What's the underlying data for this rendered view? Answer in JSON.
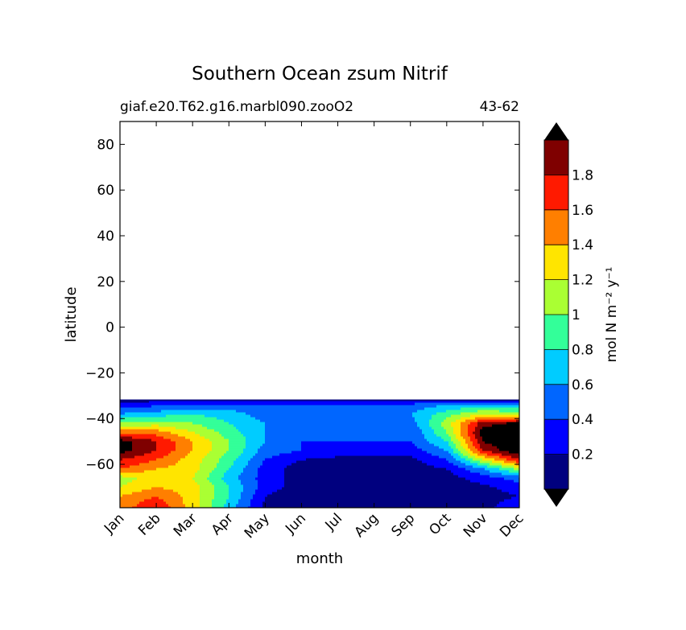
{
  "chart_data": {
    "type": "contour",
    "title": "Southern Ocean zsum Nitrif",
    "subtitle_left": "giaf.e20.T62.g16.marbl090.zooO2",
    "subtitle_right": "43-62",
    "xlabel": "month",
    "ylabel": "latitude",
    "x_categories": [
      "Jan",
      "Feb",
      "Mar",
      "Apr",
      "May",
      "Jun",
      "Jul",
      "Aug",
      "Sep",
      "Oct",
      "Nov",
      "Dec"
    ],
    "x_tick_labels": [
      "Jan",
      "Feb",
      "Mar",
      "Apr",
      "May",
      "Jun",
      "Jul",
      "Aug",
      "Sep",
      "Oct",
      "Nov",
      "Dec"
    ],
    "ylim": [
      -79,
      90
    ],
    "y_ticks": [
      80,
      60,
      40,
      20,
      0,
      -20,
      -40,
      -60
    ],
    "y_tick_labels": [
      "80",
      "60",
      "40",
      "20",
      "0",
      "−20",
      "−40",
      "−60"
    ],
    "data_lat_range": [
      -79,
      -32
    ],
    "colorbar": {
      "label": "mol N m⁻² y⁻¹",
      "levels": [
        0,
        0.2,
        0.4,
        0.6,
        0.8,
        1.0,
        1.2,
        1.4,
        1.6,
        1.8,
        2.0
      ],
      "tick_values": [
        0.2,
        0.4,
        0.6,
        0.8,
        1.0,
        1.2,
        1.4,
        1.6,
        1.8
      ],
      "tick_labels": [
        "0.2",
        "0.4",
        "0.6",
        "0.8",
        "1",
        "1.2",
        "1.4",
        "1.6",
        "1.8"
      ],
      "colors": [
        "#00007f",
        "#0000ff",
        "#0066ff",
        "#00ccff",
        "#33ff99",
        "#aaff33",
        "#ffe500",
        "#ff7f00",
        "#ff1a00",
        "#7f0000"
      ],
      "under_color": "#000000",
      "over_color": "#000000",
      "extend": "both"
    },
    "field_rows": [
      {
        "lat": -32,
        "values": [
          0.15,
          0.15,
          0.15,
          0.15,
          0.15,
          0.15,
          0.15,
          0.15,
          0.15,
          0.15,
          0.15,
          0.15
        ]
      },
      {
        "lat": -34,
        "values": [
          0.3,
          0.35,
          0.4,
          0.45,
          0.45,
          0.4,
          0.4,
          0.4,
          0.45,
          0.6,
          0.7,
          0.6
        ]
      },
      {
        "lat": -38,
        "values": [
          0.6,
          0.7,
          0.8,
          0.7,
          0.5,
          0.4,
          0.4,
          0.4,
          0.6,
          0.9,
          1.2,
          1.1
        ]
      },
      {
        "lat": -42,
        "values": [
          1.0,
          1.1,
          1.0,
          0.8,
          0.6,
          0.4,
          0.4,
          0.4,
          0.5,
          1.1,
          1.9,
          2.05
        ]
      },
      {
        "lat": -46,
        "values": [
          1.5,
          1.5,
          1.2,
          0.9,
          0.6,
          0.4,
          0.4,
          0.4,
          0.4,
          1.0,
          2.1,
          2.3
        ]
      },
      {
        "lat": -50,
        "values": [
          2.1,
          1.8,
          1.4,
          1.0,
          0.6,
          0.4,
          0.4,
          0.4,
          0.4,
          0.8,
          2.0,
          2.3
        ]
      },
      {
        "lat": -54,
        "values": [
          2.1,
          1.8,
          1.4,
          1.0,
          0.5,
          0.4,
          0.3,
          0.3,
          0.3,
          0.6,
          1.8,
          2.2
        ]
      },
      {
        "lat": -58,
        "values": [
          1.8,
          1.6,
          1.3,
          0.9,
          0.4,
          0.2,
          0.15,
          0.15,
          0.15,
          0.4,
          1.2,
          1.8
        ]
      },
      {
        "lat": -62,
        "values": [
          1.6,
          1.4,
          1.3,
          0.8,
          0.3,
          0.1,
          0.1,
          0.1,
          0.1,
          0.2,
          0.6,
          1.1
        ]
      },
      {
        "lat": -66,
        "values": [
          1.1,
          1.3,
          1.2,
          0.7,
          0.3,
          0.1,
          0.1,
          0.1,
          0.1,
          0.1,
          0.3,
          0.5
        ]
      },
      {
        "lat": -70,
        "values": [
          1.2,
          1.4,
          1.3,
          0.8,
          0.3,
          0.1,
          0.05,
          0.05,
          0.05,
          0.1,
          0.15,
          0.3
        ]
      },
      {
        "lat": -74,
        "values": [
          1.4,
          1.6,
          1.3,
          0.8,
          0.2,
          0.05,
          0.05,
          0.05,
          0.05,
          0.05,
          0.1,
          0.2
        ]
      },
      {
        "lat": -79,
        "values": [
          1.5,
          1.8,
          1.3,
          0.7,
          0.15,
          0.05,
          0.05,
          0.05,
          0.05,
          0.05,
          0.1,
          0.4
        ]
      }
    ]
  }
}
